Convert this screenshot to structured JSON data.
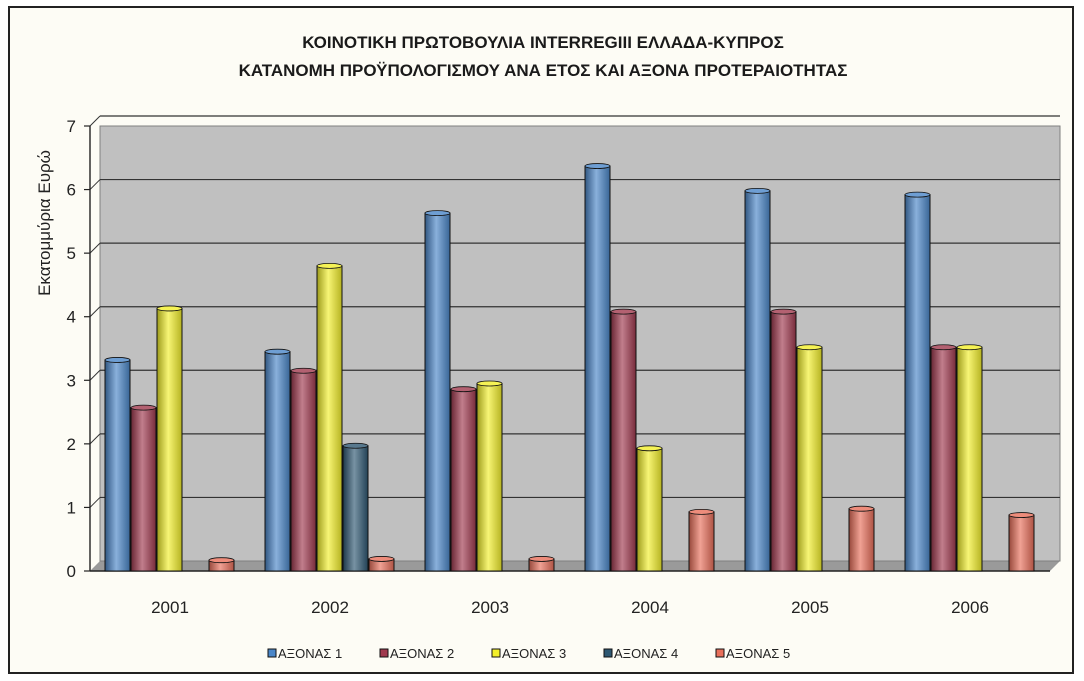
{
  "chart_data": {
    "type": "bar",
    "title": [
      "ΚΟΙΝΟΤΙΚΗ ΠΡΩΤΟΒΟΥΛΙΑ INTERREGIII ΕΛΛΑΔΑ-ΚΥΠΡΟΣ",
      "ΚΑΤΑΝΟΜΗ ΠΡΟΫΠΟΛΟΓΙΣΜΟΥ ΑΝΑ ΕΤΟΣ ΚΑΙ ΑΞΟΝΑ ΠΡΟΤΕΡΑΙΟΤΗΤΑΣ"
    ],
    "xlabel": "",
    "ylabel": "Εκατομμύρια Ευρώ",
    "ylim": [
      0,
      7
    ],
    "yticks": [
      0,
      1,
      2,
      3,
      4,
      5,
      6,
      7
    ],
    "grid": true,
    "legend_position": "bottom",
    "plot_background": "#c0c0c0",
    "categories": [
      "2001",
      "2002",
      "2003",
      "2004",
      "2005",
      "2006"
    ],
    "series": [
      {
        "name": "ΑΞΟΝΑΣ 1",
        "color": "#4a86c8",
        "values": [
          3.32,
          3.45,
          5.63,
          6.37,
          5.98,
          5.92
        ]
      },
      {
        "name": "ΑΞΟΝΑΣ 2",
        "color": "#a0394e",
        "values": [
          2.57,
          3.15,
          2.86,
          4.08,
          4.08,
          3.52
        ]
      },
      {
        "name": "ΑΞΟΝΑΣ 3",
        "color": "#f2ef2a",
        "values": [
          4.13,
          4.8,
          2.95,
          1.93,
          3.52,
          3.52
        ]
      },
      {
        "name": "ΑΞΟΝΑΣ 4",
        "color": "#2e5872",
        "values": [
          0,
          1.97,
          0,
          0,
          0,
          0
        ]
      },
      {
        "name": "ΑΞΟΝΑΣ 5",
        "color": "#e86f5a",
        "values": [
          0.17,
          0.19,
          0.19,
          0.93,
          0.98,
          0.88
        ]
      }
    ]
  }
}
